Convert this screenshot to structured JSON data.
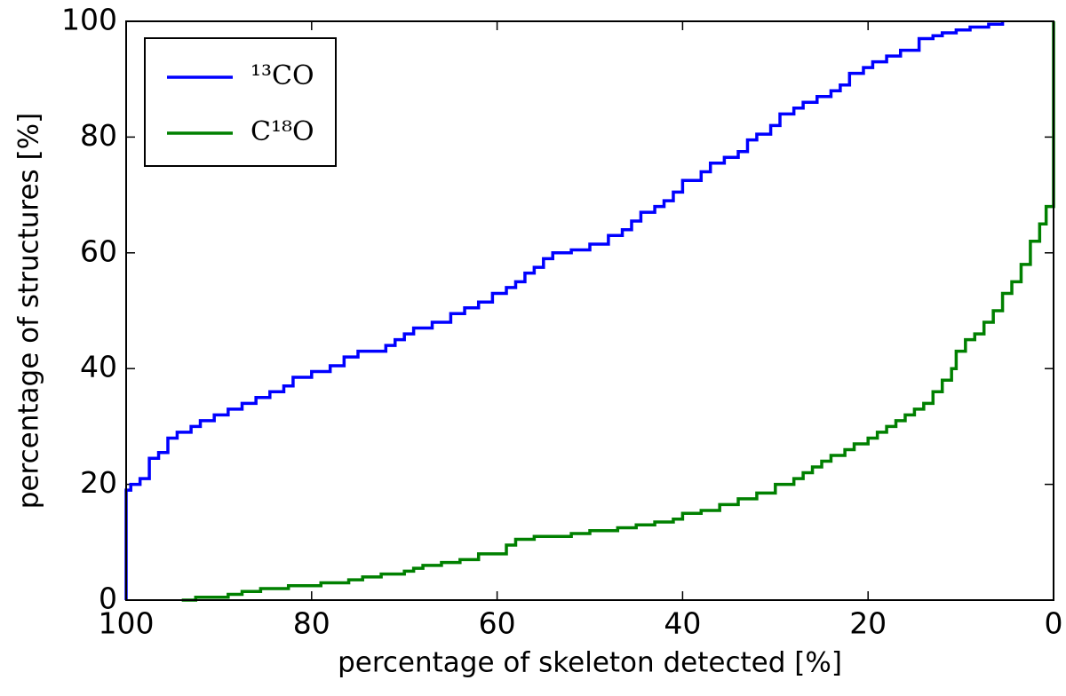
{
  "chart_data": {
    "type": "line",
    "step": true,
    "xlabel": "percentage of skeleton detected [%]",
    "ylabel": "percentage of structures [%]",
    "xlim": [
      100,
      0
    ],
    "ylim": [
      0,
      100
    ],
    "xticks": [
      100,
      80,
      60,
      40,
      20,
      0
    ],
    "yticks": [
      0,
      20,
      40,
      60,
      80,
      100
    ],
    "legend": "upper left",
    "series": [
      {
        "name": "¹³CO",
        "color": "#0000ff",
        "x": [
          100,
          100,
          99.5,
          98.5,
          97.5,
          96.5,
          95.5,
          94.5,
          93,
          92,
          90.5,
          89,
          87.5,
          86,
          84.5,
          83,
          82,
          80,
          78,
          76.5,
          75,
          72,
          71,
          70,
          69,
          67,
          65,
          63.5,
          62,
          60.5,
          59,
          58,
          57,
          56,
          55,
          54,
          52,
          50,
          48,
          46.5,
          45.5,
          44.5,
          43,
          42,
          41,
          40,
          38,
          37,
          35.5,
          34,
          33,
          32,
          30.5,
          29.5,
          28,
          27,
          25.5,
          24,
          23,
          22,
          20.5,
          19.5,
          18,
          16.5,
          14.5,
          13,
          12,
          10.5,
          9,
          7,
          5.5
        ],
        "values": [
          0,
          19,
          20,
          21,
          24.5,
          25.5,
          28,
          29,
          30,
          31,
          32,
          33,
          34,
          35,
          36,
          37,
          38.5,
          39.5,
          40.5,
          42,
          43,
          44,
          45,
          46,
          47,
          48,
          49.5,
          50.5,
          51.5,
          53,
          54,
          55,
          56.5,
          57.5,
          59,
          60,
          60.5,
          61.5,
          63,
          64,
          65.5,
          67,
          68,
          69,
          70.5,
          72.5,
          74,
          75.5,
          76.5,
          77.5,
          79.5,
          80.5,
          82,
          84,
          85,
          86,
          87,
          88,
          89,
          91,
          92,
          93,
          94,
          95,
          97,
          97.5,
          98,
          98.5,
          99,
          99.5,
          100
        ]
      },
      {
        "name": "C¹⁸O",
        "color": "#008000",
        "x": [
          94,
          92.5,
          89,
          87.5,
          85.5,
          82.5,
          79,
          76,
          74.5,
          72.5,
          70,
          69,
          68,
          66,
          64,
          62,
          59,
          58,
          56,
          52,
          50,
          47,
          45,
          43,
          41,
          40,
          38,
          36,
          34,
          32,
          30,
          28,
          27,
          26,
          25,
          24,
          22.5,
          21.5,
          20,
          19,
          18,
          17,
          16,
          15,
          14,
          13,
          12,
          11,
          10.5,
          9.5,
          8.5,
          7.5,
          6.5,
          5.5,
          4.5,
          3.5,
          2.5,
          1.5,
          0.8,
          0,
          0
        ],
        "values": [
          0,
          0.5,
          1,
          1.5,
          2,
          2.5,
          3,
          3.5,
          4,
          4.5,
          5,
          5.5,
          6,
          6.5,
          7,
          8,
          9.5,
          10.5,
          11,
          11.5,
          12,
          12.5,
          13,
          13.5,
          14,
          15,
          15.5,
          16.5,
          17.5,
          18.5,
          20,
          21,
          22,
          23,
          24,
          25,
          26,
          27,
          28,
          29,
          30,
          31,
          32,
          33,
          34,
          36,
          38,
          40,
          43,
          45,
          46,
          48,
          50,
          53,
          55,
          58,
          62,
          65,
          68,
          68,
          100
        ]
      }
    ]
  }
}
